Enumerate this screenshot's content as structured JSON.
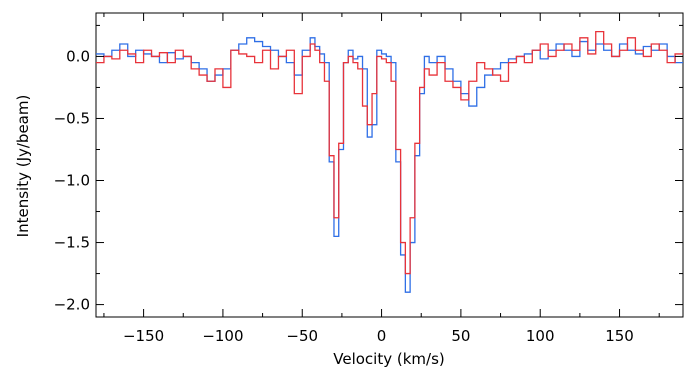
{
  "chart_data": {
    "type": "line",
    "title": "",
    "xlabel": "Velocity (km/s)",
    "ylabel": "Intensity (Jy/beam)",
    "xlim": [
      -180,
      190
    ],
    "ylim": [
      -2.1,
      0.35
    ],
    "xticks": [
      -150,
      -100,
      -50,
      0,
      50,
      100,
      150
    ],
    "xtick_labels": [
      "−150",
      "−100",
      "−50",
      "0",
      "50",
      "100",
      "150"
    ],
    "yticks": [
      0.0,
      -0.5,
      -1.0,
      -1.5,
      -2.0
    ],
    "ytick_labels": [
      "0.0",
      "−0.5",
      "−1.0",
      "−1.5",
      "−2.0"
    ],
    "grid": false,
    "step_plot": true,
    "series": [
      {
        "color": "#2f6fe6",
        "x": [
          -180,
          -175,
          -170,
          -165,
          -160,
          -155,
          -150,
          -145,
          -140,
          -135,
          -130,
          -125,
          -120,
          -115,
          -110,
          -105,
          -100,
          -95,
          -90,
          -85,
          -80,
          -75,
          -70,
          -65,
          -60,
          -55,
          -50,
          -45,
          -42,
          -39,
          -36,
          -33,
          -30,
          -27,
          -24,
          -21,
          -18,
          -15,
          -12,
          -9,
          -6,
          -3,
          0,
          3,
          6,
          9,
          12,
          15,
          18,
          21,
          24,
          27,
          30,
          35,
          40,
          45,
          50,
          55,
          60,
          65,
          70,
          75,
          80,
          85,
          90,
          95,
          100,
          105,
          110,
          115,
          120,
          125,
          130,
          135,
          140,
          145,
          150,
          155,
          160,
          165,
          170,
          175,
          180,
          185
        ],
        "y": [
          0.02,
          0.0,
          0.05,
          0.1,
          0.0,
          0.05,
          0.02,
          0.0,
          -0.05,
          0.03,
          -0.02,
          0.0,
          -0.05,
          -0.1,
          -0.2,
          -0.15,
          -0.1,
          0.05,
          0.1,
          0.15,
          0.12,
          0.08,
          0.05,
          0.0,
          -0.05,
          -0.15,
          0.05,
          0.15,
          0.08,
          0.02,
          -0.05,
          -0.85,
          -1.45,
          -0.75,
          -0.05,
          0.05,
          -0.02,
          0.0,
          -0.1,
          -0.65,
          -0.55,
          0.05,
          0.02,
          0.0,
          -0.05,
          -0.85,
          -1.6,
          -1.9,
          -1.5,
          -0.8,
          -0.3,
          0.0,
          -0.05,
          0.0,
          -0.1,
          -0.2,
          -0.3,
          -0.4,
          -0.25,
          -0.15,
          -0.1,
          -0.05,
          -0.02,
          0.0,
          0.02,
          0.05,
          -0.02,
          0.05,
          0.1,
          0.05,
          0.0,
          0.12,
          0.05,
          0.1,
          0.05,
          0.0,
          0.1,
          0.05,
          0.02,
          0.08,
          0.05,
          0.1,
          0.0,
          -0.05
        ]
      },
      {
        "color": "#e8333a",
        "x": [
          -180,
          -175,
          -170,
          -165,
          -160,
          -155,
          -150,
          -145,
          -140,
          -135,
          -130,
          -125,
          -120,
          -115,
          -110,
          -105,
          -100,
          -95,
          -90,
          -85,
          -80,
          -75,
          -70,
          -65,
          -60,
          -55,
          -50,
          -45,
          -42,
          -39,
          -36,
          -33,
          -30,
          -27,
          -24,
          -21,
          -18,
          -15,
          -12,
          -9,
          -6,
          -3,
          0,
          3,
          6,
          9,
          12,
          15,
          18,
          21,
          24,
          27,
          30,
          35,
          40,
          45,
          50,
          55,
          60,
          65,
          70,
          75,
          80,
          85,
          90,
          95,
          100,
          105,
          110,
          115,
          120,
          125,
          130,
          135,
          140,
          145,
          150,
          155,
          160,
          165,
          170,
          175,
          180,
          185
        ],
        "y": [
          -0.05,
          0.0,
          -0.02,
          0.05,
          0.02,
          -0.05,
          0.05,
          0.0,
          0.03,
          -0.05,
          0.05,
          0.0,
          -0.1,
          -0.15,
          -0.2,
          -0.1,
          -0.25,
          0.05,
          0.02,
          0.0,
          -0.05,
          0.05,
          -0.1,
          0.0,
          0.05,
          -0.3,
          0.0,
          0.1,
          0.05,
          -0.05,
          -0.2,
          -0.8,
          -1.3,
          -0.7,
          -0.05,
          0.0,
          -0.05,
          -0.1,
          -0.4,
          -0.55,
          -0.3,
          0.0,
          -0.02,
          -0.05,
          -0.2,
          -0.75,
          -1.5,
          -1.75,
          -1.3,
          -0.7,
          -0.25,
          -0.1,
          -0.15,
          -0.05,
          -0.2,
          -0.25,
          -0.35,
          -0.2,
          -0.05,
          -0.1,
          -0.15,
          -0.2,
          -0.05,
          0.0,
          -0.05,
          0.05,
          0.1,
          0.0,
          0.05,
          0.1,
          0.05,
          0.15,
          0.02,
          0.2,
          0.1,
          0.0,
          0.05,
          0.15,
          0.05,
          0.0,
          0.1,
          0.05,
          -0.05,
          0.02
        ]
      }
    ]
  }
}
